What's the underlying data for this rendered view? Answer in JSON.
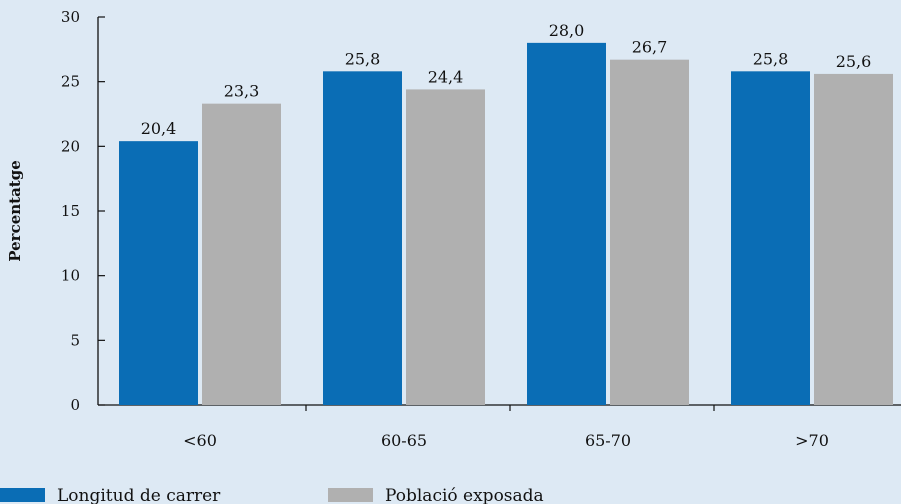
{
  "chart_data": {
    "type": "bar",
    "ylabel": "Percentatge",
    "xlabel": "",
    "ylim": [
      0,
      30
    ],
    "yticks": [
      {
        "value": 0,
        "label": "0"
      },
      {
        "value": 5,
        "label": "5"
      },
      {
        "value": 10,
        "label": "10"
      },
      {
        "value": 15,
        "label": "15"
      },
      {
        "value": 20,
        "label": "20"
      },
      {
        "value": 25,
        "label": "25"
      },
      {
        "value": 30,
        "label": "30"
      }
    ],
    "categories": [
      "<60",
      "60-65",
      "65-70",
      ">70"
    ],
    "series": [
      {
        "name": "Longitud de carrer",
        "color": "#0a6db5",
        "values": [
          20.4,
          25.8,
          28.0,
          25.8
        ],
        "labels": [
          "20,4",
          "25,8",
          "28,0",
          "25,8"
        ]
      },
      {
        "name": "Població exposada",
        "color": "#b0b0b0",
        "values": [
          23.3,
          24.4,
          26.7,
          25.6
        ],
        "labels": [
          "23,3",
          "24,4",
          "26,7",
          "25,6"
        ]
      }
    ],
    "grid": false,
    "legend_position": "bottom-left"
  }
}
